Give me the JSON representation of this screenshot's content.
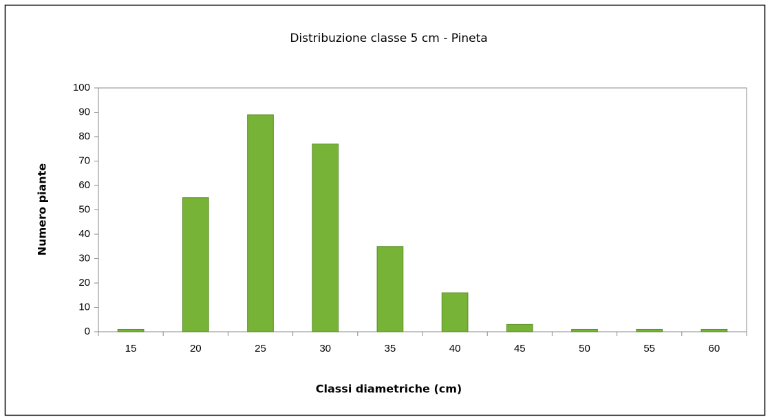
{
  "chart_data": {
    "type": "bar",
    "title": "Distribuzione classe 5 cm - Pineta",
    "x_label": "Classi diametriche (cm)",
    "y_label": "Numero piante",
    "categories": [
      "15",
      "20",
      "25",
      "30",
      "35",
      "40",
      "45",
      "50",
      "55",
      "60"
    ],
    "values": [
      1,
      55,
      89,
      77,
      35,
      16,
      3,
      1,
      1,
      1
    ],
    "color": "#77b336",
    "ylim": [
      0,
      100
    ],
    "yticks": [
      0,
      10,
      20,
      30,
      40,
      50,
      60,
      70,
      80,
      90,
      100
    ],
    "grid": false
  }
}
